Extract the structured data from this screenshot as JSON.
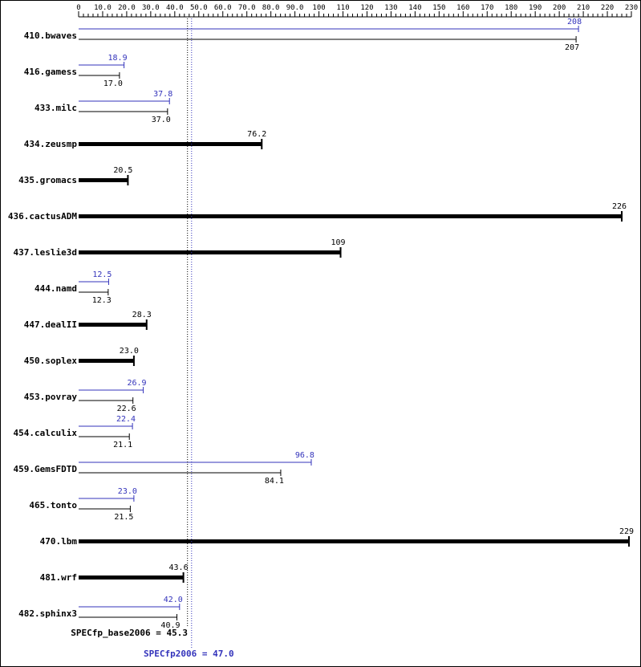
{
  "chart_data": {
    "type": "bar",
    "orientation": "horizontal",
    "title": "",
    "axis": {
      "min": 0,
      "max": 230,
      "major_step": 10,
      "minor_step": 2,
      "tick_labels": [
        "0",
        "10.0",
        "20.0",
        "30.0",
        "40.0",
        "50.0",
        "60.0",
        "70.0",
        "80.0",
        "90.0",
        "100",
        "110",
        "120",
        "130",
        "140",
        "150",
        "160",
        "170",
        "180",
        "190",
        "200",
        "210",
        "220",
        "230"
      ]
    },
    "series_info": {
      "peak_name": "SPECfp2006 (peak)",
      "base_name": "SPECfp_base2006 (base)",
      "peak_color": "#3333bb",
      "base_color": "#000000"
    },
    "benchmarks": [
      {
        "name": "410.bwaves",
        "peak": 208,
        "peak_label": "208",
        "base": 207,
        "base_label": "207"
      },
      {
        "name": "416.gamess",
        "peak": 18.9,
        "peak_label": "18.9",
        "base": 17.0,
        "base_label": "17.0"
      },
      {
        "name": "433.milc",
        "peak": 37.8,
        "peak_label": "37.8",
        "base": 37.0,
        "base_label": "37.0"
      },
      {
        "name": "434.zeusmp",
        "peak": null,
        "peak_label": "",
        "base": 76.2,
        "base_label": "76.2"
      },
      {
        "name": "435.gromacs",
        "peak": null,
        "peak_label": "",
        "base": 20.5,
        "base_label": "20.5"
      },
      {
        "name": "436.cactusADM",
        "peak": null,
        "peak_label": "",
        "base": 226,
        "base_label": "226"
      },
      {
        "name": "437.leslie3d",
        "peak": null,
        "peak_label": "",
        "base": 109,
        "base_label": "109"
      },
      {
        "name": "444.namd",
        "peak": 12.5,
        "peak_label": "12.5",
        "base": 12.3,
        "base_label": "12.3"
      },
      {
        "name": "447.dealII",
        "peak": null,
        "peak_label": "",
        "base": 28.3,
        "base_label": "28.3"
      },
      {
        "name": "450.soplex",
        "peak": null,
        "peak_label": "",
        "base": 23.0,
        "base_label": "23.0"
      },
      {
        "name": "453.povray",
        "peak": 26.9,
        "peak_label": "26.9",
        "base": 22.6,
        "base_label": "22.6"
      },
      {
        "name": "454.calculix",
        "peak": 22.4,
        "peak_label": "22.4",
        "base": 21.1,
        "base_label": "21.1"
      },
      {
        "name": "459.GemsFDTD",
        "peak": 96.8,
        "peak_label": "96.8",
        "base": 84.1,
        "base_label": "84.1"
      },
      {
        "name": "465.tonto",
        "peak": 23.0,
        "peak_label": "23.0",
        "base": 21.5,
        "base_label": "21.5"
      },
      {
        "name": "470.lbm",
        "peak": null,
        "peak_label": "",
        "base": 229,
        "base_label": "229"
      },
      {
        "name": "481.wrf",
        "peak": null,
        "peak_label": "",
        "base": 43.6,
        "base_label": "43.6"
      },
      {
        "name": "482.sphinx3",
        "peak": 42.0,
        "peak_label": "42.0",
        "base": 40.9,
        "base_label": "40.9"
      }
    ],
    "reference_lines": [
      {
        "name": "base-mean",
        "value": 45.3,
        "color": "#000000",
        "style": "dotted"
      },
      {
        "name": "peak-mean",
        "value": 47.0,
        "color": "#3333bb",
        "style": "dotted"
      }
    ],
    "summary": {
      "base_text": "SPECfp_base2006 = 45.3",
      "base_value": 45.3,
      "peak_text": "SPECfp2006 = 47.0",
      "peak_value": 47.0
    }
  }
}
